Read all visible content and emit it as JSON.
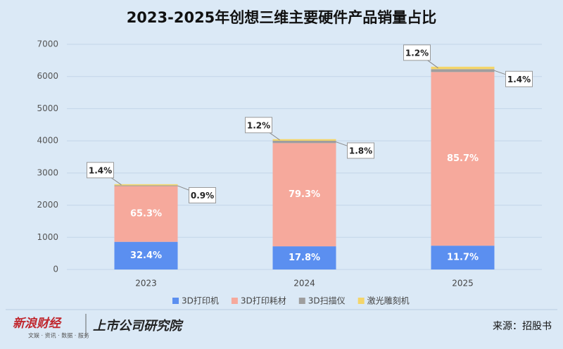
{
  "chart_data": {
    "type": "stacked_bar",
    "title": "2023-2025年创想三维主要硬件产品销量占比",
    "categories": [
      "2023",
      "2024",
      "2025"
    ],
    "series": [
      {
        "name": "3D打印机",
        "color": "#5b8ff0",
        "values": [
          860,
          720,
          740
        ],
        "data_labels": [
          "32.4%",
          "17.8%",
          "11.7%"
        ]
      },
      {
        "name": "3D打印耗材",
        "color": "#f6a99c",
        "values": [
          1730,
          3210,
          5400
        ],
        "data_labels": [
          "65.3%",
          "79.3%",
          "85.7%"
        ]
      },
      {
        "name": "3D扫描仪",
        "color": "#9e9e9e",
        "values": [
          24,
          73,
          88
        ],
        "data_labels": [
          "0.9%",
          "1.8%",
          "1.4%"
        ]
      },
      {
        "name": "激光雕刻机",
        "color": "#f4d56a",
        "values": [
          37,
          49,
          76
        ],
        "data_labels": [
          "1.4%",
          "1.2%",
          "1.2%"
        ]
      }
    ],
    "ylim": [
      0,
      7000
    ],
    "yticks": [
      0,
      1000,
      2000,
      3000,
      4000,
      5000,
      6000,
      7000
    ],
    "grid": true,
    "footer": {
      "brand": "新浪财经",
      "brand_tags": "文娱 · 资讯 · 数据 · 服务",
      "institute": "上市公司研究院",
      "source": "来源：招股书"
    }
  }
}
